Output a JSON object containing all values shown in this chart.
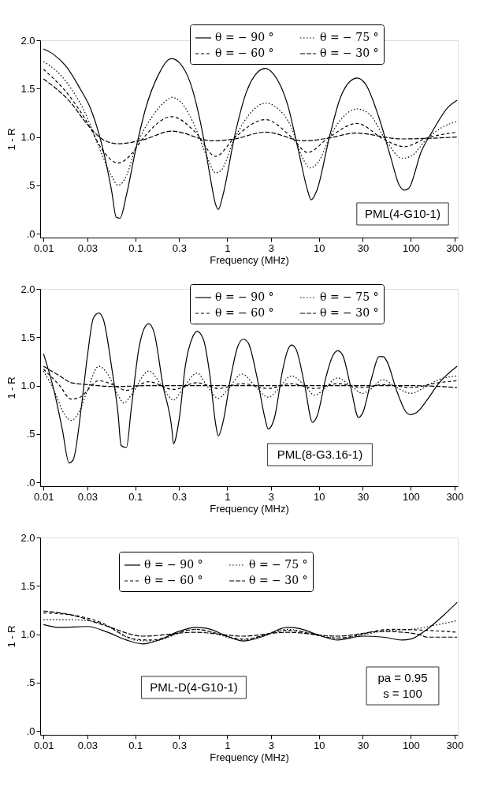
{
  "chart_data": [
    {
      "type": "line",
      "xlabel": "Frequency (MHz)",
      "ylabel": "1 - R",
      "log": "x",
      "xlim": [
        0.0092,
        325
      ],
      "ylim": [
        -0.04,
        2.0
      ],
      "xticks": [
        0.01,
        0.03,
        0.1,
        0.3,
        1,
        3,
        10,
        30,
        100,
        300
      ],
      "yticks": [
        {
          "value": 0,
          "label": ".0"
        },
        {
          "value": 0.5,
          "label": ".5"
        },
        {
          "value": 1,
          "label": "1.0"
        },
        {
          "value": 1.5,
          "label": "1.5"
        },
        {
          "value": 2,
          "label": "2.0"
        }
      ],
      "grid": false,
      "legend": "top right",
      "marker": "none",
      "annotations": [
        "PML(4-G10-1)"
      ],
      "series": [
        {
          "name": "θ = − 90 °",
          "color": "#000000",
          "line_style": "solid",
          "x": [
            0.01,
            0.013,
            0.018,
            0.025,
            0.033,
            0.045,
            0.055,
            0.062,
            0.068,
            0.08,
            0.1,
            0.13,
            0.18,
            0.23,
            0.25,
            0.3,
            0.4,
            0.55,
            0.65,
            0.75,
            0.8,
            0.9,
            1.2,
            1.6,
            2.2,
            2.6,
            3.2,
            4.5,
            6,
            7.5,
            8.2,
            9.5,
            13,
            17,
            22,
            26,
            32,
            45,
            60,
            75,
            85,
            95,
            130,
            170,
            250,
            320
          ],
          "values": [
            1.91,
            1.85,
            1.72,
            1.5,
            1.28,
            0.85,
            0.45,
            0.17,
            0.16,
            0.4,
            0.85,
            1.3,
            1.65,
            1.8,
            1.81,
            1.77,
            1.55,
            1.0,
            0.6,
            0.3,
            0.25,
            0.4,
            1.0,
            1.45,
            1.68,
            1.71,
            1.65,
            1.35,
            0.85,
            0.45,
            0.35,
            0.45,
            1.0,
            1.4,
            1.58,
            1.61,
            1.55,
            1.2,
            0.8,
            0.5,
            0.45,
            0.47,
            0.85,
            1.05,
            1.3,
            1.38
          ]
        },
        {
          "name": "θ = − 75 °",
          "color": "#000000",
          "line_style": "dotted",
          "x": [
            0.01,
            0.015,
            0.02,
            0.03,
            0.04,
            0.055,
            0.065,
            0.08,
            0.1,
            0.15,
            0.22,
            0.25,
            0.32,
            0.45,
            0.6,
            0.75,
            0.85,
            1.2,
            1.8,
            2.6,
            3.5,
            5,
            6.5,
            8,
            10,
            13,
            18,
            26,
            35,
            55,
            80,
            100,
            150,
            220,
            320
          ],
          "values": [
            1.78,
            1.65,
            1.5,
            1.2,
            0.9,
            0.6,
            0.5,
            0.6,
            0.88,
            1.2,
            1.38,
            1.41,
            1.35,
            1.1,
            0.8,
            0.63,
            0.65,
            0.98,
            1.25,
            1.35,
            1.3,
            1.1,
            0.8,
            0.68,
            0.75,
            0.99,
            1.2,
            1.29,
            1.24,
            0.95,
            0.78,
            0.8,
            0.98,
            1.1,
            1.16
          ]
        },
        {
          "name": "θ = − 60 °",
          "color": "#000000",
          "line_style": "dashed",
          "x": [
            0.01,
            0.02,
            0.03,
            0.045,
            0.065,
            0.09,
            0.12,
            0.25,
            0.45,
            0.75,
            1.2,
            2.6,
            5,
            7.5,
            13,
            26,
            50,
            85,
            150,
            320
          ],
          "values": [
            1.7,
            1.4,
            1.15,
            0.85,
            0.73,
            0.82,
            0.98,
            1.21,
            1.05,
            0.8,
            0.99,
            1.18,
            1.0,
            0.84,
            1.0,
            1.14,
            0.98,
            0.9,
            0.99,
            1.05
          ]
        },
        {
          "name": "θ = − 30 °",
          "color": "#000000",
          "line_style": "long_dashed",
          "x": [
            0.01,
            0.02,
            0.03,
            0.045,
            0.065,
            0.12,
            0.25,
            0.7,
            1.2,
            2.6,
            7,
            13,
            25,
            80,
            320
          ],
          "values": [
            1.6,
            1.35,
            1.13,
            0.97,
            0.93,
            0.97,
            1.06,
            0.96,
            0.98,
            1.05,
            0.96,
            0.99,
            1.04,
            0.98,
            1.0
          ]
        }
      ]
    },
    {
      "type": "line",
      "xlabel": "Frequency (MHz)",
      "ylabel": "1 - R",
      "log": "x",
      "xlim": [
        0.0092,
        325
      ],
      "ylim": [
        -0.04,
        2.0
      ],
      "xticks": [
        0.01,
        0.03,
        0.1,
        0.3,
        1,
        3,
        10,
        30,
        100,
        300
      ],
      "yticks": [
        {
          "value": 0,
          "label": ".0"
        },
        {
          "value": 0.5,
          "label": ".5"
        },
        {
          "value": 1,
          "label": "1.0"
        },
        {
          "value": 1.5,
          "label": "1.5"
        },
        {
          "value": 2,
          "label": "2.0"
        }
      ],
      "grid": false,
      "legend": "top right",
      "marker": "none",
      "annotations": [
        "PML(8-G3.16-1)"
      ],
      "series": [
        {
          "name": "θ = − 90 °",
          "color": "#000000",
          "line_style": "solid",
          "x": [
            0.01,
            0.013,
            0.016,
            0.019,
            0.021,
            0.026,
            0.03,
            0.035,
            0.04,
            0.045,
            0.055,
            0.065,
            0.07,
            0.08,
            0.09,
            0.11,
            0.13,
            0.14,
            0.16,
            0.2,
            0.25,
            0.26,
            0.3,
            0.35,
            0.42,
            0.47,
            0.55,
            0.65,
            0.75,
            0.8,
            0.9,
            1.1,
            1.3,
            1.5,
            1.7,
            2.1,
            2.6,
            2.8,
            3.3,
            4,
            4.5,
            5,
            5.6,
            7,
            8.5,
            9.5,
            12,
            14,
            16,
            18,
            22,
            27,
            30,
            38,
            45,
            50,
            55,
            70,
            90,
            100,
            115,
            150,
            200,
            320
          ],
          "values": [
            1.33,
            0.95,
            0.55,
            0.2,
            0.23,
            0.8,
            1.3,
            1.7,
            1.75,
            1.68,
            1.2,
            0.7,
            0.38,
            0.36,
            0.75,
            1.4,
            1.62,
            1.64,
            1.55,
            1.0,
            0.55,
            0.4,
            0.65,
            1.2,
            1.5,
            1.56,
            1.48,
            1.1,
            0.6,
            0.48,
            0.62,
            1.1,
            1.4,
            1.48,
            1.44,
            1.1,
            0.65,
            0.55,
            0.68,
            1.15,
            1.35,
            1.42,
            1.38,
            1.0,
            0.62,
            0.68,
            1.1,
            1.3,
            1.36,
            1.32,
            1.0,
            0.67,
            0.72,
            1.1,
            1.3,
            1.3,
            1.25,
            0.95,
            0.72,
            0.7,
            0.72,
            0.85,
            1.02,
            1.2
          ]
        },
        {
          "name": "θ = − 75 °",
          "color": "#000000",
          "line_style": "dotted",
          "x": [
            0.01,
            0.013,
            0.017,
            0.02,
            0.025,
            0.03,
            0.04,
            0.05,
            0.065,
            0.075,
            0.09,
            0.14,
            0.2,
            0.26,
            0.32,
            0.47,
            0.6,
            0.8,
            1,
            1.45,
            2,
            2.8,
            3.5,
            5,
            7,
            9,
            11,
            16,
            22,
            30,
            35,
            50,
            70,
            100,
            140,
            200,
            320
          ],
          "values": [
            1.15,
            0.95,
            0.7,
            0.64,
            0.75,
            0.95,
            1.2,
            1.12,
            0.9,
            0.82,
            0.9,
            1.15,
            0.98,
            0.85,
            0.95,
            1.13,
            1.0,
            0.87,
            0.95,
            1.12,
            1.0,
            0.88,
            0.95,
            1.1,
            1.0,
            0.9,
            0.95,
            1.08,
            1.0,
            0.92,
            0.95,
            1.06,
            0.98,
            0.92,
            0.98,
            1.06,
            1.1
          ]
        },
        {
          "name": "θ = − 60 °",
          "color": "#000000",
          "line_style": "dashed",
          "x": [
            0.01,
            0.015,
            0.02,
            0.025,
            0.04,
            0.06,
            0.08,
            0.14,
            0.26,
            0.47,
            0.8,
            1.45,
            2.8,
            5,
            9,
            16,
            30,
            50,
            100,
            200,
            320
          ],
          "values": [
            1.17,
            1.0,
            0.86,
            0.88,
            1.05,
            1.0,
            0.95,
            1.04,
            0.96,
            1.03,
            0.97,
            1.02,
            0.97,
            1.02,
            0.97,
            1.02,
            0.98,
            1.01,
            0.98,
            1.03,
            1.05
          ]
        },
        {
          "name": "θ = − 30 °",
          "color": "#000000",
          "line_style": "long_dashed",
          "x": [
            0.01,
            0.015,
            0.02,
            0.03,
            0.06,
            0.15,
            1,
            10,
            100,
            320
          ],
          "values": [
            1.2,
            1.1,
            1.03,
            1.01,
            0.99,
            1.0,
            1.0,
            1.0,
            1.0,
            0.98
          ]
        }
      ]
    },
    {
      "type": "line",
      "xlabel": "Frequency (MHz)",
      "ylabel": "1 - R",
      "log": "x",
      "xlim": [
        0.0092,
        325
      ],
      "ylim": [
        -0.04,
        2.0
      ],
      "xticks": [
        0.01,
        0.03,
        0.1,
        0.3,
        1,
        3,
        10,
        30,
        100,
        300
      ],
      "yticks": [
        {
          "value": 0,
          "label": ".0"
        },
        {
          "value": 0.5,
          "label": ".5"
        },
        {
          "value": 1,
          "label": "1.0"
        },
        {
          "value": 1.5,
          "label": "1.5"
        },
        {
          "value": 2,
          "label": "2.0"
        }
      ],
      "grid": false,
      "legend": "top",
      "marker": "none",
      "annotations": [
        "PML-D(4-G10-1)",
        "pa = 0.95",
        "s = 100"
      ],
      "series": [
        {
          "name": "θ = − 90 °",
          "color": "#000000",
          "line_style": "solid",
          "x": [
            0.01,
            0.015,
            0.03,
            0.05,
            0.08,
            0.12,
            0.18,
            0.3,
            0.45,
            0.6,
            1,
            1.5,
            2.5,
            4.5,
            6,
            10,
            16,
            30,
            50,
            80,
            100,
            150,
            230,
            320
          ],
          "values": [
            1.1,
            1.07,
            1.08,
            1.02,
            0.94,
            0.9,
            0.94,
            1.03,
            1.07,
            1.06,
            0.98,
            0.93,
            0.98,
            1.07,
            1.06,
            0.99,
            0.94,
            0.98,
            0.97,
            0.94,
            0.95,
            1.05,
            1.2,
            1.33
          ]
        },
        {
          "name": "θ = − 75 °",
          "color": "#000000",
          "line_style": "dotted",
          "x": [
            0.01,
            0.02,
            0.04,
            0.1,
            0.15,
            0.45,
            1.5,
            4.5,
            16,
            60,
            100,
            200,
            320
          ],
          "values": [
            1.15,
            1.15,
            1.12,
            0.94,
            0.93,
            1.05,
            0.94,
            1.05,
            0.96,
            1.04,
            1.05,
            1.1,
            1.14
          ]
        },
        {
          "name": "θ = − 60 °",
          "color": "#000000",
          "line_style": "dashed",
          "x": [
            0.01,
            0.02,
            0.04,
            0.1,
            0.15,
            0.45,
            1.5,
            4.5,
            16,
            60,
            150,
            320
          ],
          "values": [
            1.22,
            1.2,
            1.13,
            0.95,
            0.94,
            1.05,
            0.95,
            1.04,
            0.96,
            1.05,
            1.04,
            1.02
          ]
        },
        {
          "name": "θ = − 30 °",
          "color": "#000000",
          "line_style": "long_dashed",
          "x": [
            0.01,
            0.02,
            0.05,
            0.12,
            0.45,
            1.5,
            4.5,
            16,
            50,
            120,
            150,
            320
          ],
          "values": [
            1.24,
            1.2,
            1.08,
            0.98,
            1.02,
            0.98,
            1.02,
            0.98,
            1.03,
            1.0,
            0.97,
            0.97
          ]
        }
      ]
    }
  ]
}
